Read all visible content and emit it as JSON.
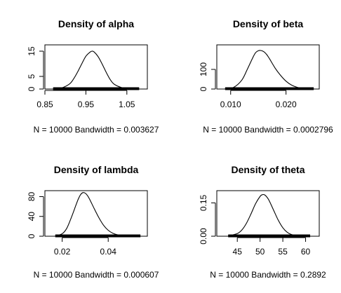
{
  "chart_data": [
    {
      "type": "line",
      "title": "Density of alpha",
      "xlabel": "N = 10000   Bandwidth = 0.003627",
      "ylabel": "",
      "xlim": [
        0.85,
        1.1
      ],
      "ylim": [
        0,
        17.5
      ],
      "xticks": [
        0.85,
        0.95,
        1.05
      ],
      "xtick_labels": [
        "0.85",
        "0.95",
        "1.05"
      ],
      "yticks": [
        0,
        5,
        15
      ],
      "ytick_labels": [
        "0",
        "5",
        "15"
      ],
      "rug": true,
      "series": [
        {
          "x": [
            0.87,
            0.89,
            0.91,
            0.92,
            0.93,
            0.94,
            0.95,
            0.96,
            0.965,
            0.97,
            0.98,
            0.99,
            1.0,
            1.01,
            1.02,
            1.04,
            1.06,
            1.08
          ],
          "y": [
            0.05,
            0.4,
            2.0,
            4.0,
            6.8,
            10.0,
            13.0,
            14.6,
            15.0,
            14.7,
            12.8,
            9.8,
            6.5,
            3.6,
            1.8,
            0.45,
            0.1,
            0.02
          ]
        }
      ]
    },
    {
      "type": "line",
      "title": "Density of beta",
      "xlabel": "N = 10000   Bandwidth = 0.0002796",
      "ylabel": "",
      "xlim": [
        0.0075,
        0.026
      ],
      "ylim": [
        0,
        225
      ],
      "xticks": [
        0.01,
        0.02
      ],
      "xtick_labels": [
        "0.010",
        "0.020"
      ],
      "yticks": [
        0,
        100
      ],
      "ytick_labels": [
        "0",
        "100"
      ],
      "rug": true,
      "series": [
        {
          "x": [
            0.009,
            0.0105,
            0.012,
            0.013,
            0.014,
            0.0145,
            0.015,
            0.0155,
            0.016,
            0.0165,
            0.017,
            0.018,
            0.019,
            0.02,
            0.021,
            0.022,
            0.023,
            0.025
          ],
          "y": [
            1,
            8,
            45,
            100,
            160,
            185,
            195,
            196,
            190,
            176,
            155,
            108,
            70,
            40,
            20,
            9,
            4,
            1
          ]
        }
      ]
    },
    {
      "type": "line",
      "title": "Density of lambda",
      "xlabel": "N = 10000   Bandwidth = 0.000607",
      "ylabel": "",
      "xlim": [
        0.0125,
        0.057
      ],
      "ylim": [
        0,
        92
      ],
      "xticks": [
        0.02,
        0.04
      ],
      "xtick_labels": [
        "0.02",
        "0.04"
      ],
      "yticks": [
        0,
        40,
        80
      ],
      "ytick_labels": [
        "0",
        "40",
        "80"
      ],
      "rug": true,
      "series": [
        {
          "x": [
            0.017,
            0.02,
            0.022,
            0.024,
            0.026,
            0.027,
            0.028,
            0.029,
            0.03,
            0.031,
            0.032,
            0.034,
            0.036,
            0.038,
            0.04,
            0.042,
            0.044,
            0.048,
            0.054
          ],
          "y": [
            0.5,
            5,
            16,
            38,
            63,
            75,
            84,
            88,
            87,
            82,
            74,
            55,
            37,
            22,
            12,
            6,
            3,
            0.8,
            0.1
          ]
        }
      ]
    },
    {
      "type": "line",
      "title": "Density of theta",
      "xlabel": "N = 10000   Bandwidth = 0.2892",
      "ylabel": "",
      "xlim": [
        40.5,
        63
      ],
      "ylim": [
        0,
        0.205
      ],
      "xticks": [
        45,
        50,
        55,
        60
      ],
      "xtick_labels": [
        "45",
        "50",
        "55",
        "60"
      ],
      "yticks": [
        0.0,
        0.15
      ],
      "ytick_labels": [
        "0.00",
        "0.15"
      ],
      "rug": true,
      "series": [
        {
          "x": [
            43,
            45,
            46,
            47,
            48,
            49,
            50,
            50.5,
            51,
            51.5,
            52,
            53,
            54,
            55,
            56,
            57,
            59,
            61
          ],
          "y": [
            0.002,
            0.012,
            0.028,
            0.058,
            0.1,
            0.146,
            0.179,
            0.187,
            0.186,
            0.176,
            0.16,
            0.116,
            0.072,
            0.038,
            0.017,
            0.007,
            0.001,
            0.0
          ]
        }
      ]
    }
  ]
}
